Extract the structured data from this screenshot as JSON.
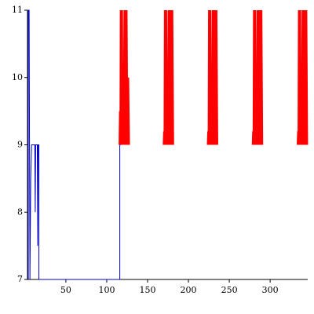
{
  "chart_data": {
    "type": "line",
    "xlim": [
      3,
      346
    ],
    "xticks": [
      50,
      100,
      150,
      200,
      250,
      300
    ],
    "ylim": [
      7,
      11
    ],
    "yticks": [
      7,
      8,
      9,
      10,
      11
    ],
    "series": [
      {
        "color": "#0000c8",
        "x": [
          4,
          4,
          5,
          6,
          7,
          8,
          9,
          11,
          12,
          12.5,
          13,
          14,
          15,
          15.5,
          16,
          17,
          17,
          116,
          116,
          117
        ],
        "values": [
          7,
          11,
          11,
          7,
          8.5,
          9,
          9,
          9,
          9,
          8,
          9,
          9,
          9,
          7.5,
          9,
          9,
          7,
          7,
          9,
          9
        ]
      },
      {
        "color": "#ff0000",
        "x": [
          116,
          116.5,
          117,
          117.5,
          118,
          118.5,
          119,
          120,
          121,
          122,
          123,
          124,
          125,
          126,
          127,
          null,
          170,
          170.5,
          171,
          171.5,
          172,
          172.5,
          173,
          174,
          175,
          176,
          177,
          178,
          179,
          180,
          181,
          null,
          224,
          224.5,
          225,
          225.5,
          226,
          226.5,
          227,
          228,
          229,
          230,
          231,
          232,
          233,
          234,
          235,
          null,
          279,
          279.5,
          280,
          280.5,
          281,
          281.5,
          282,
          283,
          284,
          285,
          286,
          287,
          288,
          289,
          290,
          null,
          334,
          334.5,
          335,
          335.5,
          336,
          336.5,
          337,
          338,
          339,
          340,
          341,
          342,
          343,
          344,
          345
        ],
        "values": [
          9,
          9.5,
          9,
          11,
          9,
          11,
          9,
          10.2,
          9,
          11,
          9,
          11,
          9,
          10,
          9,
          null,
          9,
          9.2,
          9,
          11,
          9,
          11,
          9,
          10.2,
          9,
          11,
          9,
          11,
          9,
          11,
          9,
          null,
          9,
          9.2,
          9,
          11,
          9,
          11,
          9,
          10.2,
          9,
          11,
          9,
          11,
          9,
          11,
          9,
          null,
          9,
          9.2,
          9,
          11,
          9,
          11,
          9,
          10.2,
          9,
          11,
          9,
          11,
          9,
          11,
          9,
          null,
          9,
          9.2,
          9,
          11,
          9,
          11,
          9,
          10.2,
          9,
          11,
          9,
          11,
          9,
          11,
          9
        ]
      }
    ]
  }
}
